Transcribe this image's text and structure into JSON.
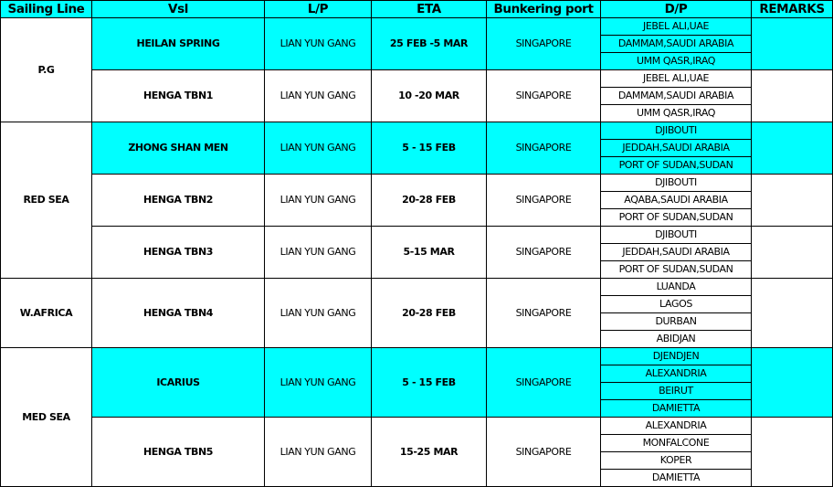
{
  "colors": {
    "highlight": "#00ffff",
    "border": "#000000"
  },
  "headers": [
    "Sailing Line",
    "Vsl",
    "L/P",
    "ETA",
    "Bunkering port",
    "D/P",
    "REMARKS"
  ],
  "groups": [
    {
      "line": "P.G",
      "vessels": [
        {
          "vsl": "HEILAN SPRING",
          "lp": "LIAN YUN GANG",
          "eta": "25 FEB -5 MAR",
          "bunker": "SINGAPORE",
          "highlight": true,
          "remarks": "",
          "dp": [
            "JEBEL ALI,UAE",
            "DAMMAM,SAUDI ARABIA",
            "UMM QASR,IRAQ"
          ]
        },
        {
          "vsl": "HENGA TBN1",
          "lp": "LIAN YUN GANG",
          "eta": "10 -20 MAR",
          "bunker": "SINGAPORE",
          "highlight": false,
          "remarks": "",
          "dp": [
            "JEBEL ALI,UAE",
            "DAMMAM,SAUDI ARABIA",
            "UMM QASR,IRAQ"
          ]
        }
      ]
    },
    {
      "line": "RED SEA",
      "vessels": [
        {
          "vsl": "ZHONG SHAN MEN",
          "lp": "LIAN YUN GANG",
          "eta": "5 - 15 FEB",
          "bunker": "SINGAPORE",
          "highlight": true,
          "remarks": "",
          "dp": [
            "DJIBOUTI",
            "JEDDAH,SAUDI ARABIA",
            "PORT OF SUDAN,SUDAN"
          ]
        },
        {
          "vsl": "HENGA TBN2",
          "lp": "LIAN YUN GANG",
          "eta": "20-28 FEB",
          "bunker": "SINGAPORE",
          "highlight": false,
          "remarks": "",
          "dp": [
            "DJIBOUTI",
            "AQABA,SAUDI ARABIA",
            "PORT OF SUDAN,SUDAN"
          ]
        },
        {
          "vsl": "HENGA TBN3",
          "lp": "LIAN YUN GANG",
          "eta": "5-15 MAR",
          "bunker": "SINGAPORE",
          "highlight": false,
          "remarks": "",
          "dp": [
            "DJIBOUTI",
            "JEDDAH,SAUDI ARABIA",
            "PORT OF SUDAN,SUDAN"
          ]
        }
      ]
    },
    {
      "line": "W.AFRICA",
      "vessels": [
        {
          "vsl": "HENGA TBN4",
          "lp": "LIAN YUN GANG",
          "eta": "20-28 FEB",
          "bunker": "SINGAPORE",
          "highlight": false,
          "remarks": "",
          "dp": [
            "LUANDA",
            "LAGOS",
            "DURBAN",
            "ABIDJAN"
          ]
        }
      ]
    },
    {
      "line": "MED SEA",
      "vessels": [
        {
          "vsl": "ICARIUS",
          "lp": "LIAN YUN GANG",
          "eta": "5 - 15 FEB",
          "bunker": "SINGAPORE",
          "highlight": true,
          "remarks": "",
          "dp": [
            "DJENDJEN",
            "ALEXANDRIA",
            "BEIRUT",
            "DAMIETTA"
          ]
        },
        {
          "vsl": "HENGA TBN5",
          "lp": "LIAN YUN GANG",
          "eta": "15-25 MAR",
          "bunker": "SINGAPORE",
          "highlight": false,
          "remarks": "",
          "dp": [
            "ALEXANDRIA",
            "MONFALCONE",
            "KOPER",
            "DAMIETTA"
          ]
        }
      ]
    }
  ]
}
